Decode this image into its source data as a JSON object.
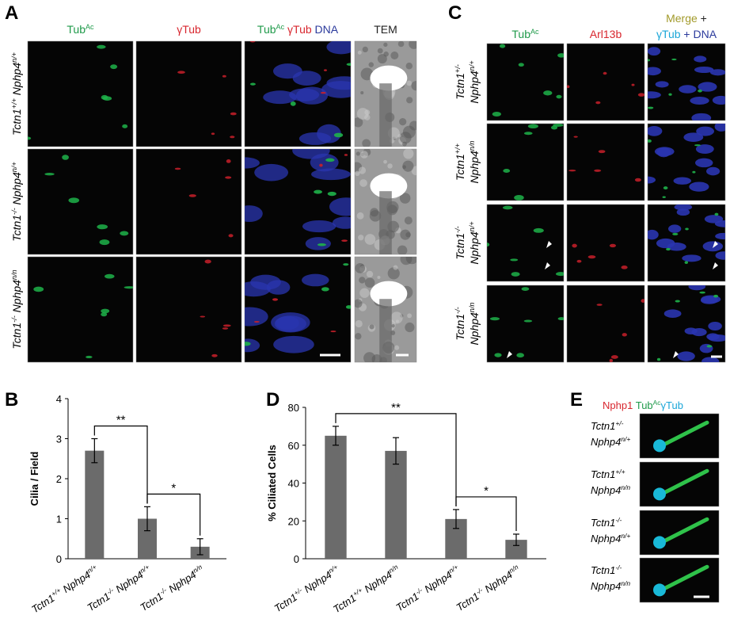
{
  "panel_a": {
    "letter": "A",
    "headers": [
      [
        [
          {
            "text": "Tub",
            "sup": "Ac",
            "color": "#1f9a4a"
          }
        ]
      ],
      [
        [
          {
            "text": "γTub",
            "color": "#d8262e"
          }
        ]
      ],
      [
        [
          {
            "text": "Tub",
            "sup": "Ac",
            "color": "#1f9a4a"
          },
          {
            "text": " γTub",
            "color": "#d8262e"
          },
          {
            "text": " DNA",
            "color": "#2b3a9c"
          }
        ]
      ],
      [
        [
          {
            "text": "TEM",
            "color": "#222222"
          }
        ]
      ]
    ],
    "rows": [
      [
        [
          {
            "text": "Tctn1",
            "sup": "+/+"
          },
          {
            "text": " Nphp4",
            "sup": "n/+"
          }
        ]
      ],
      [
        [
          {
            "text": "Tctn1",
            "sup": "-/-"
          },
          {
            "text": " Nphp4",
            "sup": "n/+"
          }
        ]
      ],
      [
        [
          {
            "text": "Tctn1",
            "sup": "-/-"
          },
          {
            "text": " Nphp4",
            "sup": "n/n"
          }
        ]
      ]
    ]
  },
  "panel_c": {
    "letter": "C",
    "headers": [
      [
        [
          {
            "text": "Tub",
            "sup": "Ac",
            "color": "#1f9a4a"
          }
        ]
      ],
      [
        [
          {
            "text": "Arl13b",
            "color": "#d8262e"
          }
        ]
      ],
      [
        [
          {
            "text": "Merge",
            "color": "#a29a2a"
          },
          {
            "text": " +",
            "color": "#222222"
          }
        ],
        [
          {
            "text": "γTub",
            "color": "#1aa6d8"
          },
          {
            "text": " + DNA",
            "color": "#2b3a9c"
          }
        ]
      ]
    ],
    "rows": [
      [
        [
          {
            "text": "Tctn1",
            "sup": "+/-"
          }
        ],
        [
          {
            "text": "Nphp4",
            "sup": "n/+"
          }
        ]
      ],
      [
        [
          {
            "text": "Tctn1",
            "sup": "+/+"
          }
        ],
        [
          {
            "text": "Nphp4",
            "sup": "n/n"
          }
        ]
      ],
      [
        [
          {
            "text": "Tctn1",
            "sup": "-/-"
          }
        ],
        [
          {
            "text": "Nphp4",
            "sup": "n/+"
          }
        ]
      ],
      [
        [
          {
            "text": "Tctn1",
            "sup": "-/-"
          }
        ],
        [
          {
            "text": "Nphp4",
            "sup": "n/n"
          }
        ]
      ]
    ]
  },
  "panel_e": {
    "letter": "E",
    "header": [
      [
        {
          "text": "Nphp1",
          "color": "#d8262e"
        },
        {
          "text": " Tub",
          "sup": "Ac",
          "color": "#1f9a4a"
        },
        {
          "text": "γTub",
          "color": "#1aa6d8"
        }
      ]
    ],
    "rows": [
      [
        [
          {
            "text": "Tctn1",
            "sup": "+/-"
          }
        ],
        [
          {
            "text": "Nphp4",
            "sup": "n/+"
          }
        ]
      ],
      [
        [
          {
            "text": "Tctn1",
            "sup": "+/+"
          }
        ],
        [
          {
            "text": "Nphp4",
            "sup": "n/n"
          }
        ]
      ],
      [
        [
          {
            "text": "Tctn1",
            "sup": "-/-"
          }
        ],
        [
          {
            "text": "Nphp4",
            "sup": "n/+"
          }
        ]
      ],
      [
        [
          {
            "text": "Tctn1",
            "sup": "-/-"
          }
        ],
        [
          {
            "text": "Nphp4",
            "sup": "n/n"
          }
        ]
      ]
    ]
  },
  "chart_data": [
    {
      "type": "bar",
      "letter": "B",
      "y_label": "Cilia / Field",
      "categories": [
        [
          {
            "text": "Tctn1",
            "sup": "+/+"
          },
          {
            "text": " Nphp4",
            "sup": "n/+"
          }
        ],
        [
          {
            "text": "Tctn1",
            "sup": "-/-"
          },
          {
            "text": " Nphp4",
            "sup": "n/+"
          }
        ],
        [
          {
            "text": "Tctn1",
            "sup": "-/-"
          },
          {
            "text": " Nphp4",
            "sup": "n/n"
          }
        ]
      ],
      "values": [
        2.7,
        1.0,
        0.3
      ],
      "errors": [
        0.3,
        0.3,
        0.2
      ],
      "color": "#6b6b6b",
      "ylim": [
        0,
        4
      ],
      "yticks": [
        0,
        1,
        2,
        3,
        4
      ],
      "annotations": [
        {
          "label": "**",
          "from": 0,
          "to": 1
        },
        {
          "label": "*",
          "from": 1,
          "to": 2
        }
      ]
    },
    {
      "type": "bar",
      "letter": "D",
      "y_label": "% Ciliated Cells",
      "categories": [
        [
          {
            "text": "Tctn1",
            "sup": "+/-"
          },
          {
            "text": " Nphp4",
            "sup": "n/+"
          }
        ],
        [
          {
            "text": "Tctn1",
            "sup": "+/+"
          },
          {
            "text": " Nphp4",
            "sup": "n/n"
          }
        ],
        [
          {
            "text": "Tctn1",
            "sup": "-/-"
          },
          {
            "text": " Nphp4",
            "sup": "n/+"
          }
        ],
        [
          {
            "text": "Tctn1",
            "sup": "-/-"
          },
          {
            "text": " Nphp4",
            "sup": "n/n"
          }
        ]
      ],
      "values": [
        65,
        57,
        21,
        10
      ],
      "errors": [
        5,
        7,
        5,
        3
      ],
      "color": "#6b6b6b",
      "ylim": [
        0,
        80
      ],
      "yticks": [
        0,
        20,
        40,
        60,
        80
      ],
      "annotations": [
        {
          "label": "**",
          "from": 0,
          "to": 2
        },
        {
          "label": "*",
          "from": 2,
          "to": 3
        }
      ]
    }
  ]
}
